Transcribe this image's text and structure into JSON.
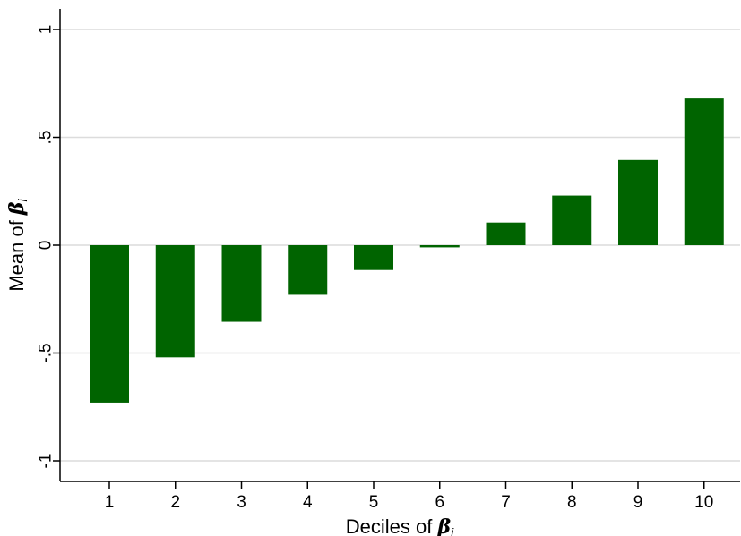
{
  "chart_data": {
    "type": "bar",
    "categories": [
      "1",
      "2",
      "3",
      "4",
      "5",
      "6",
      "7",
      "8",
      "9",
      "10"
    ],
    "values": [
      -0.73,
      -0.52,
      -0.355,
      -0.23,
      -0.115,
      -0.01,
      0.105,
      0.23,
      0.395,
      0.68
    ],
    "ylim": [
      -1,
      1
    ],
    "yticks": [
      -1,
      -0.5,
      0,
      0.5,
      1
    ],
    "ytick_labels": [
      "-1",
      "-.5",
      "0",
      ".5",
      "1"
    ],
    "xlabel": {
      "prefix": "Deciles of ",
      "symbol": "β",
      "subscript": "i"
    },
    "ylabel": {
      "prefix": "Mean of ",
      "symbol": "β",
      "subscript": "i"
    },
    "grid": true,
    "colors": {
      "bar": "#006400",
      "grid": "#dcdcdc",
      "axis": "#000000"
    }
  }
}
